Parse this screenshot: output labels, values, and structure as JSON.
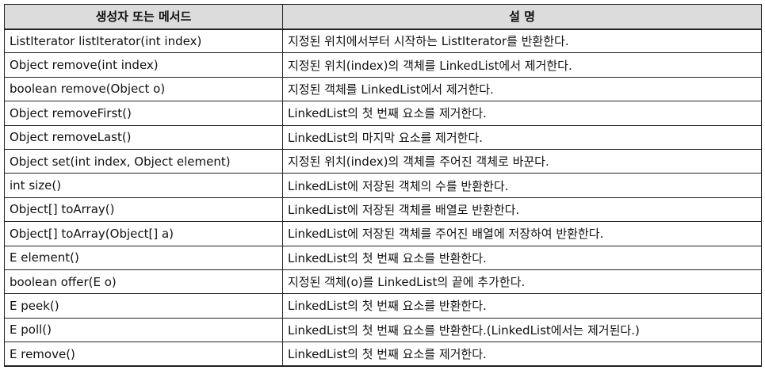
{
  "table": {
    "headers": [
      "생성자 또는 메서드",
      "설    명"
    ],
    "rows": [
      [
        "ListIterator listIterator(int index)",
        "지정된 위치에서부터 시작하는 ListIterator를 반환한다."
      ],
      [
        "Object remove(int index)",
        "지정된 위치(index)의 객체를 LinkedList에서 제거한다."
      ],
      [
        "boolean remove(Object o)",
        "지정된 객체를 LinkedList에서 제거한다."
      ],
      [
        "Object removeFirst()",
        "LinkedList의 첫 번째 요소를 제거한다."
      ],
      [
        "Object removeLast()",
        "LinkedList의 마지막 요소를 제거한다."
      ],
      [
        "Object set(int index, Object element)",
        "지정된 위치(index)의 객체를 주어진 객체로 바꾼다."
      ],
      [
        "int size()",
        "LinkedList에 저장된 객체의 수를 반환한다."
      ],
      [
        "Object[] toArray()",
        "LinkedList에 저장된 객체를 배열로 반환한다."
      ],
      [
        "Object[] toArray(Object[] a)",
        "LinkedList에 저장된 객체를 주어진 배열에 저장하여 반환한다."
      ],
      [
        "E element()",
        "LinkedList의 첫 번째 요소를 반환한다."
      ],
      [
        "boolean offer(E o)",
        "지정된 객체(o)를 LinkedList의 끝에 추가한다."
      ],
      [
        "E peek()",
        "LinkedList의 첫 번째 요소를 반환한다."
      ],
      [
        "E poll()",
        "LinkedList의 첫 번째 요소를 반환한다.(LinkedList에서는 제거된다.)"
      ],
      [
        "E remove()",
        "LinkedList의 첫 번째 요소를 제거한다."
      ]
    ]
  }
}
